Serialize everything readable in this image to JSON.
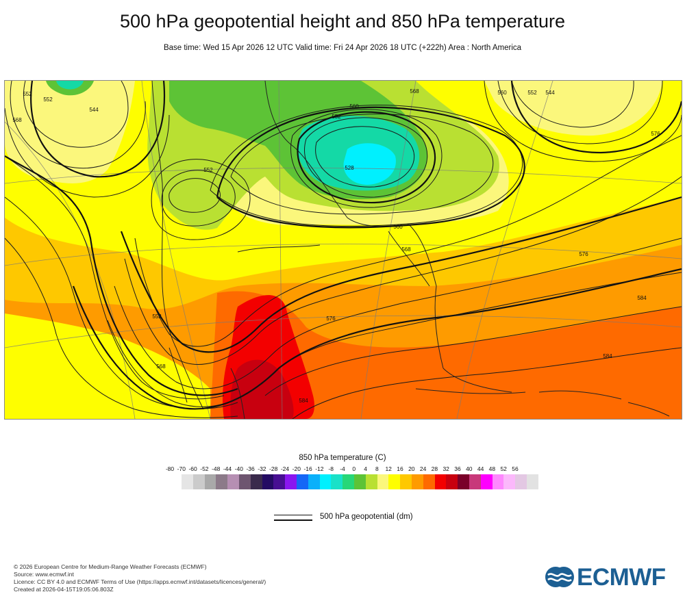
{
  "header": {
    "title": "500 hPa geopotential height and 850 hPa temperature",
    "subtitle": "Base time: Wed 15 Apr 2026 12 UTC Valid time: Fri 24 Apr 2026 18 UTC (+222h) Area : North America"
  },
  "map": {
    "contour_labels": [
      "552",
      "552",
      "544",
      "568",
      "552",
      "560",
      "552",
      "528",
      "560",
      "568",
      "576",
      "552",
      "544",
      "568",
      "560",
      "576",
      "584",
      "576",
      "552",
      "568",
      "584",
      "584"
    ],
    "colors": {
      "cold_green": "#5dc336",
      "light_green": "#b9e032",
      "yellow": "#fefe00",
      "pale_yellow": "#fbf77c",
      "orange_yellow": "#fec800",
      "orange": "#fe9b00",
      "dark_orange": "#fe6a00",
      "red": "#f30000",
      "dark_red": "#c8000f",
      "teal": "#14d9a6",
      "cyan": "#00f0fe"
    }
  },
  "legend": {
    "title": "850 hPa temperature (C)",
    "ticks": [
      "-80",
      "-70",
      "-60",
      "-52",
      "-48",
      "-44",
      "-40",
      "-36",
      "-32",
      "-28",
      "-24",
      "-20",
      "-16",
      "-12",
      "-8",
      "-4",
      "0",
      "4",
      "8",
      "12",
      "16",
      "20",
      "24",
      "28",
      "32",
      "36",
      "40",
      "44",
      "48",
      "52",
      "56"
    ],
    "swatch_colors": [
      "#e5e5e5",
      "#cbcbcb",
      "#a9a9a9",
      "#8c7a89",
      "#b68fb3",
      "#6e5570",
      "#3a2a4c",
      "#240b63",
      "#470f92",
      "#8a16f0",
      "#1567f6",
      "#0ab0fa",
      "#00f0fe",
      "#19e1c8",
      "#27d778",
      "#5dc336",
      "#b9e032",
      "#fbf77c",
      "#fefe00",
      "#fec800",
      "#fe9b00",
      "#fe6a00",
      "#f30000",
      "#c8000f",
      "#7a0029",
      "#c8387a",
      "#fe00fe",
      "#fe88fe",
      "#fbb8fb",
      "#e3c8e3",
      "#e2e2e2"
    ],
    "geopotential_label": "500 hPa geopotential (dm)"
  },
  "footer": {
    "line1": "© 2026 European Centre for Medium-Range Weather Forecasts (ECMWF)",
    "line2": "Source: www.ecmwf.int",
    "line3": "Licence: CC BY 4.0 and ECMWF Terms of Use (https://apps.ecmwf.int/datasets/licences/general/)",
    "line4": "Created at 2026-04-15T19:05:06.803Z",
    "logo_text": "ECMWF"
  }
}
